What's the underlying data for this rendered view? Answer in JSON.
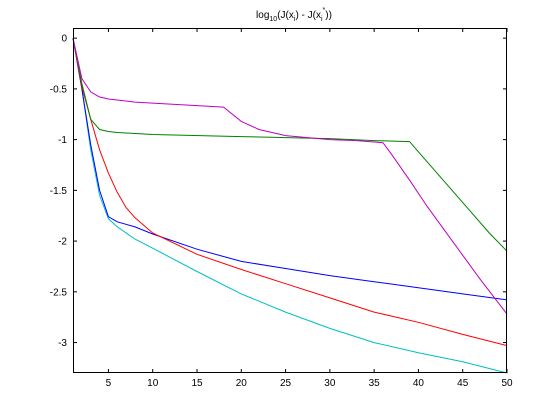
{
  "chart_data": {
    "type": "line",
    "title": {
      "parts": [
        {
          "text": "log",
          "sub": false
        },
        {
          "text": "10",
          "sub": true
        },
        {
          "text": "(J(x",
          "sub": false
        },
        {
          "text": "i",
          "sub": true
        },
        {
          "text": ") - J(x",
          "sub": false
        },
        {
          "text": "i",
          "sub": true
        },
        {
          "text": "*",
          "sub": false,
          "sup": true
        },
        {
          "text": "))",
          "sub": false
        }
      ]
    },
    "xlabel": "",
    "ylabel": "",
    "xlim": [
      1,
      50
    ],
    "ylim": [
      -3.3,
      0.1
    ],
    "xticks": [
      5,
      10,
      15,
      20,
      25,
      30,
      35,
      40,
      45,
      50
    ],
    "yticks": [
      0,
      -0.5,
      -1,
      -1.5,
      -2,
      -2.5,
      -3
    ],
    "ytick_labels": [
      "0",
      "-0.5",
      "-1",
      "-1.5",
      "-2",
      "-2.5",
      "-3"
    ],
    "grid": false,
    "series": [
      {
        "color": "#00c0c0",
        "x": [
          1,
          2,
          3,
          4,
          5,
          6,
          8,
          10,
          15,
          20,
          25,
          30,
          35,
          40,
          45,
          50
        ],
        "y": [
          0,
          -0.5,
          -1.1,
          -1.55,
          -1.78,
          -1.86,
          -1.98,
          -2.07,
          -2.3,
          -2.52,
          -2.7,
          -2.86,
          -3.0,
          -3.1,
          -3.19,
          -3.3
        ]
      },
      {
        "color": "#0000ff",
        "x": [
          1,
          2,
          3,
          4,
          5,
          6,
          8,
          10,
          15,
          20,
          25,
          30,
          35,
          40,
          45,
          50
        ],
        "y": [
          0,
          -0.5,
          -1.05,
          -1.5,
          -1.76,
          -1.81,
          -1.86,
          -1.93,
          -2.08,
          -2.2,
          -2.27,
          -2.34,
          -2.4,
          -2.46,
          -2.52,
          -2.58
        ]
      },
      {
        "color": "#ff0000",
        "x": [
          1,
          2,
          3,
          4,
          5,
          6,
          7,
          8,
          10,
          15,
          20,
          25,
          30,
          35,
          40,
          45,
          50
        ],
        "y": [
          0,
          -0.48,
          -0.8,
          -1.1,
          -1.33,
          -1.52,
          -1.67,
          -1.77,
          -1.92,
          -2.13,
          -2.28,
          -2.42,
          -2.56,
          -2.7,
          -2.8,
          -2.92,
          -3.03
        ]
      },
      {
        "color": "#008000",
        "x": [
          1,
          2,
          3,
          4,
          5,
          6,
          10,
          20,
          30,
          35,
          39,
          40,
          42,
          44,
          46,
          48,
          50
        ],
        "y": [
          0,
          -0.45,
          -0.8,
          -0.9,
          -0.92,
          -0.93,
          -0.95,
          -0.97,
          -0.99,
          -1.01,
          -1.02,
          -1.12,
          -1.32,
          -1.52,
          -1.72,
          -1.92,
          -2.1
        ]
      },
      {
        "color": "#c000c0",
        "x": [
          1,
          2,
          3,
          4,
          5,
          8,
          12,
          18,
          19,
          20,
          22,
          25,
          30,
          33,
          36,
          37,
          39,
          41,
          43,
          45,
          47,
          50
        ],
        "y": [
          0,
          -0.4,
          -0.53,
          -0.58,
          -0.6,
          -0.63,
          -0.65,
          -0.68,
          -0.75,
          -0.82,
          -0.9,
          -0.96,
          -1.0,
          -1.01,
          -1.03,
          -1.15,
          -1.4,
          -1.66,
          -1.9,
          -2.14,
          -2.38,
          -2.72
        ]
      }
    ]
  }
}
